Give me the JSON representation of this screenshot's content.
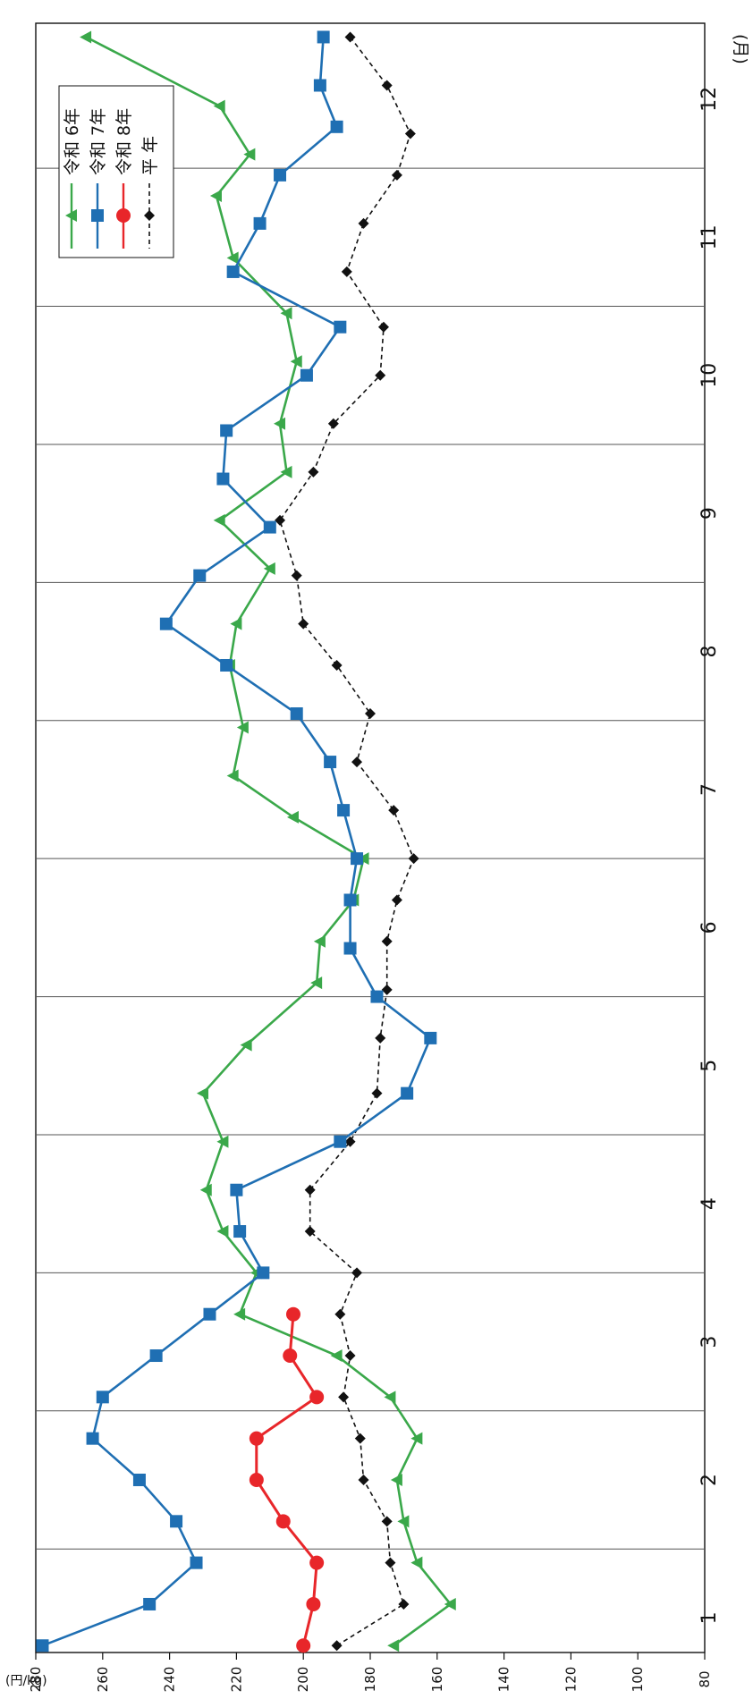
{
  "chart_data": {
    "type": "line",
    "title": "",
    "xlabel": "",
    "ylabel": "",
    "units": {
      "y": "(円/kg)",
      "x": "(月)"
    },
    "ylim": [
      80,
      280
    ],
    "y_ticks": [
      "280",
      "260",
      "240",
      "220",
      "200",
      "180",
      "160",
      "140",
      "120",
      "100",
      "80"
    ],
    "months": [
      "1",
      "2",
      "3",
      "4",
      "5",
      "6",
      "7",
      "8",
      "9",
      "10",
      "11",
      "12"
    ],
    "x_range": [
      0.75,
      12.55
    ],
    "grid": "vertical lines between months",
    "legend_placement": "top-right",
    "series": [
      {
        "name": "令和 6年",
        "color": "#3aa84a",
        "marker": "triangle",
        "dash": "solid",
        "points": [
          [
            0.8,
            173
          ],
          [
            1.1,
            156
          ],
          [
            1.4,
            166
          ],
          [
            1.7,
            170
          ],
          [
            2.0,
            172
          ],
          [
            2.3,
            166
          ],
          [
            2.6,
            174
          ],
          [
            2.9,
            190
          ],
          [
            3.2,
            219
          ],
          [
            3.5,
            214
          ],
          [
            3.8,
            224
          ],
          [
            4.1,
            229
          ],
          [
            4.45,
            224
          ],
          [
            4.8,
            230
          ],
          [
            5.15,
            217
          ],
          [
            5.6,
            196
          ],
          [
            5.9,
            195
          ],
          [
            6.2,
            185
          ],
          [
            6.5,
            182
          ],
          [
            6.8,
            203
          ],
          [
            7.1,
            221
          ],
          [
            7.45,
            218
          ],
          [
            7.9,
            222
          ],
          [
            8.2,
            220
          ],
          [
            8.6,
            210
          ],
          [
            8.95,
            225
          ],
          [
            9.3,
            205
          ],
          [
            9.65,
            207
          ],
          [
            10.1,
            202
          ],
          [
            10.45,
            205
          ],
          [
            10.85,
            221
          ],
          [
            11.3,
            226
          ],
          [
            11.6,
            216
          ],
          [
            11.95,
            225
          ],
          [
            12.45,
            265
          ]
        ]
      },
      {
        "name": "令和 7年",
        "color": "#1f6fb3",
        "marker": "square",
        "dash": "solid",
        "points": [
          [
            0.8,
            278
          ],
          [
            1.1,
            246
          ],
          [
            1.4,
            232
          ],
          [
            1.7,
            238
          ],
          [
            2.0,
            249
          ],
          [
            2.3,
            263
          ],
          [
            2.6,
            260
          ],
          [
            2.9,
            244
          ],
          [
            3.2,
            228
          ],
          [
            3.5,
            212
          ],
          [
            3.8,
            219
          ],
          [
            4.1,
            220
          ],
          [
            4.45,
            189
          ],
          [
            4.8,
            169
          ],
          [
            5.2,
            162
          ],
          [
            5.5,
            178
          ],
          [
            5.85,
            186
          ],
          [
            6.2,
            186
          ],
          [
            6.5,
            184
          ],
          [
            6.85,
            188
          ],
          [
            7.2,
            192
          ],
          [
            7.55,
            202
          ],
          [
            7.9,
            223
          ],
          [
            8.2,
            241
          ],
          [
            8.55,
            231
          ],
          [
            8.9,
            210
          ],
          [
            9.25,
            224
          ],
          [
            9.6,
            223
          ],
          [
            10.0,
            199
          ],
          [
            10.35,
            189
          ],
          [
            10.75,
            221
          ],
          [
            11.1,
            213
          ],
          [
            11.45,
            207
          ],
          [
            11.8,
            190
          ],
          [
            12.1,
            195
          ],
          [
            12.45,
            194
          ]
        ]
      },
      {
        "name": "令和 8年",
        "color": "#e8262a",
        "marker": "circle",
        "dash": "solid",
        "points": [
          [
            0.8,
            200
          ],
          [
            1.1,
            197
          ],
          [
            1.4,
            196
          ],
          [
            1.7,
            206
          ],
          [
            2.0,
            214
          ],
          [
            2.3,
            214
          ],
          [
            2.6,
            196
          ],
          [
            2.9,
            204
          ],
          [
            3.2,
            203
          ]
        ]
      },
      {
        "name": "平 年",
        "color": "#111111",
        "marker": "diamond",
        "dash": "dashed",
        "points": [
          [
            0.8,
            190
          ],
          [
            1.1,
            170
          ],
          [
            1.4,
            174
          ],
          [
            1.7,
            175
          ],
          [
            2.0,
            182
          ],
          [
            2.3,
            183
          ],
          [
            2.6,
            188
          ],
          [
            2.9,
            186
          ],
          [
            3.2,
            189
          ],
          [
            3.5,
            184
          ],
          [
            3.8,
            198
          ],
          [
            4.1,
            198
          ],
          [
            4.45,
            186
          ],
          [
            4.8,
            178
          ],
          [
            5.2,
            177
          ],
          [
            5.55,
            175
          ],
          [
            5.9,
            175
          ],
          [
            6.2,
            172
          ],
          [
            6.5,
            167
          ],
          [
            6.85,
            173
          ],
          [
            7.2,
            184
          ],
          [
            7.55,
            180
          ],
          [
            7.9,
            190
          ],
          [
            8.2,
            200
          ],
          [
            8.55,
            202
          ],
          [
            8.95,
            207
          ],
          [
            9.3,
            197
          ],
          [
            9.65,
            191
          ],
          [
            10.0,
            177
          ],
          [
            10.35,
            176
          ],
          [
            10.75,
            187
          ],
          [
            11.1,
            182
          ],
          [
            11.45,
            172
          ],
          [
            11.75,
            168
          ],
          [
            12.1,
            175
          ],
          [
            12.45,
            186
          ]
        ]
      }
    ]
  }
}
